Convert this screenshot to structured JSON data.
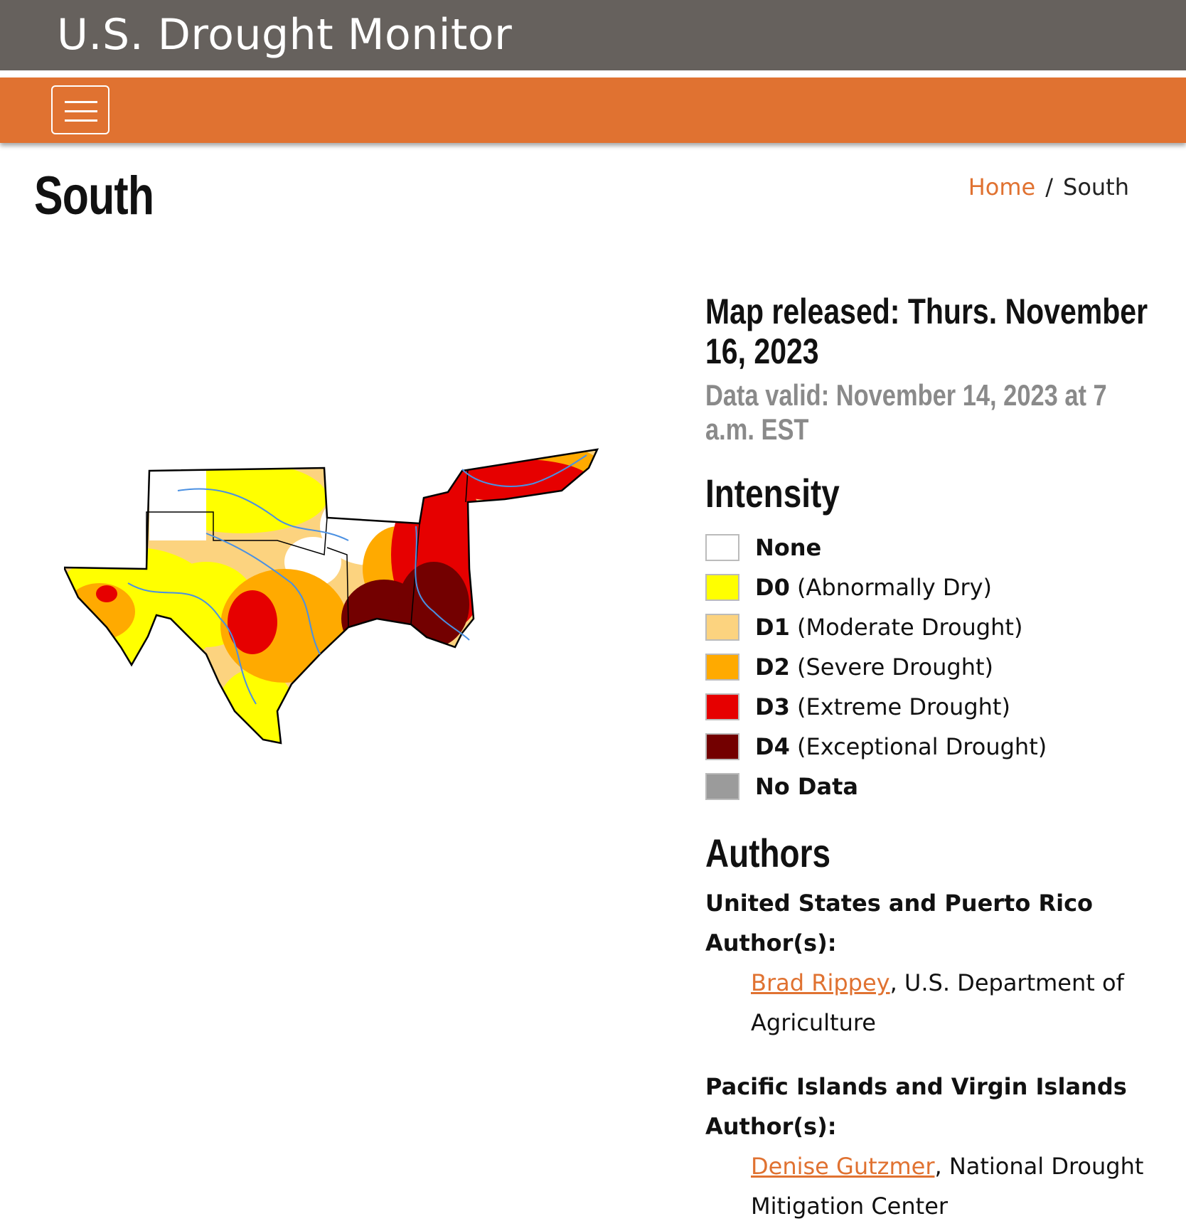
{
  "header": {
    "site_title": "U.S. Drought Monitor"
  },
  "nav": {
    "menu_icon": "hamburger-icon"
  },
  "page": {
    "title": "South"
  },
  "breadcrumb": {
    "home": "Home",
    "separator": "/",
    "current": "South"
  },
  "map_info": {
    "released": "Map released: Thurs. November 16, 2023",
    "valid": "Data valid: November 14, 2023 at 7 a.m. EST"
  },
  "intensity": {
    "heading": "Intensity",
    "items": [
      {
        "code": "",
        "label": "None",
        "color": "#ffffff"
      },
      {
        "code": "D0",
        "label": " (Abnormally Dry)",
        "color": "#ffff00"
      },
      {
        "code": "D1",
        "label": " (Moderate Drought)",
        "color": "#fcd37f"
      },
      {
        "code": "D2",
        "label": " (Severe Drought)",
        "color": "#ffaa00"
      },
      {
        "code": "D3",
        "label": " (Extreme Drought)",
        "color": "#e60000"
      },
      {
        "code": "D4",
        "label": " (Exceptional Drought)",
        "color": "#730000"
      },
      {
        "code": "",
        "label": "No Data",
        "color": "#9b9b9b"
      }
    ]
  },
  "authors": {
    "heading": "Authors",
    "us_label": "United States and Puerto Rico Author(s):",
    "us_author": {
      "name": "Brad Rippey",
      "affiliation": ", U.S. Department of Agriculture"
    },
    "pacific_label": "Pacific Islands and Virgin Islands Author(s):",
    "pacific_author": {
      "name": "Denise Gutzmer",
      "affiliation": ", National Drought Mitigation Center"
    }
  },
  "colors": {
    "header_gray": "#66615d",
    "nav_orange": "#e07231",
    "link_orange": "#e07231"
  }
}
